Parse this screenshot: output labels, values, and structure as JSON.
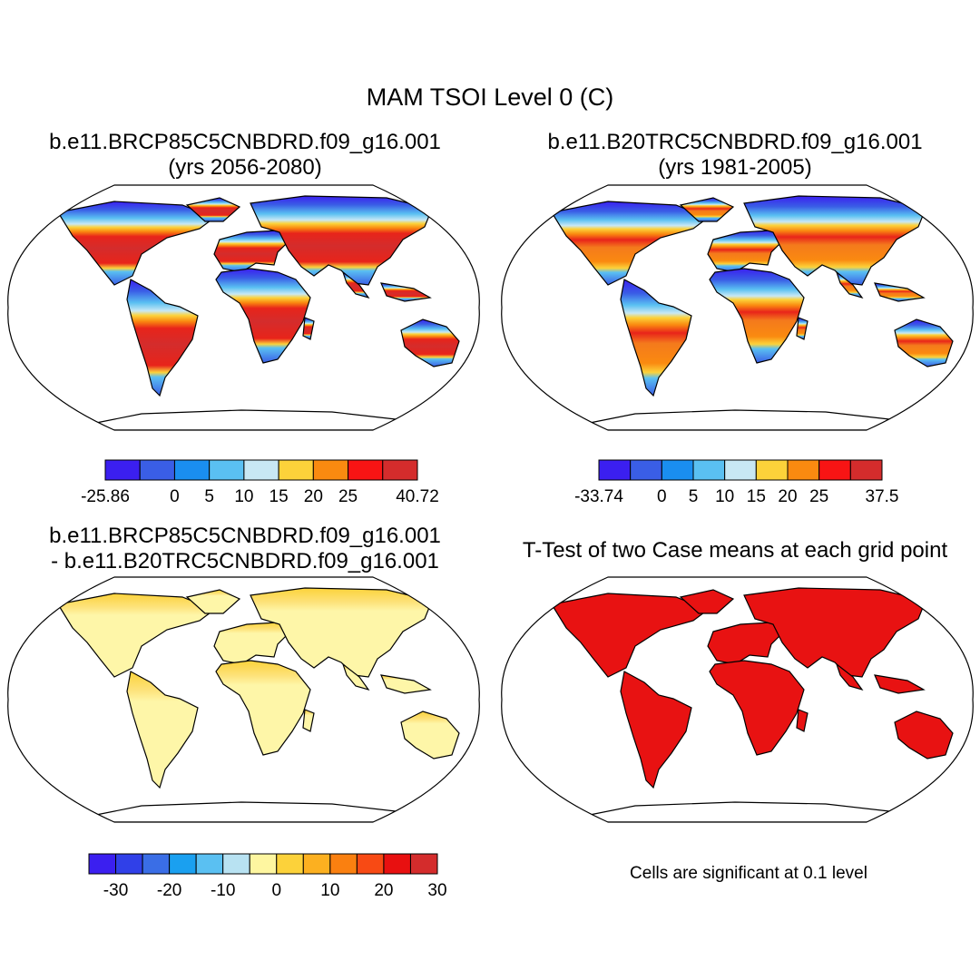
{
  "figure": {
    "main_title": "MAM TSOI Level 0 (C)",
    "panels": [
      {
        "id": "tl",
        "title_lines": [
          "b.e11.BRCP85C5CNBDRD.f09_g16.001",
          "(yrs 2056-2080)"
        ],
        "colorbar": {
          "colors": [
            "#3b1ff0",
            "#3a5ee6",
            "#1a8ef0",
            "#5ac0f2",
            "#c8e8f4",
            "#fcd23a",
            "#fa8a10",
            "#f81414",
            "#d42c2c"
          ],
          "tick_labels": [
            "-25.86",
            "0",
            "5",
            "10",
            "15",
            "20",
            "25",
            "40.72"
          ]
        }
      },
      {
        "id": "tr",
        "title_lines": [
          "b.e11.B20TRC5CNBDRD.f09_g16.001",
          "(yrs 1981-2005)"
        ],
        "colorbar": {
          "colors": [
            "#3b1ff0",
            "#3a5ee6",
            "#1a8ef0",
            "#5ac0f2",
            "#c8e8f4",
            "#fcd23a",
            "#fa8a10",
            "#f81414",
            "#d42c2c"
          ],
          "tick_labels": [
            "-33.74",
            "0",
            "5",
            "10",
            "15",
            "20",
            "25",
            "37.5"
          ]
        }
      },
      {
        "id": "bl",
        "title_lines": [
          "b.e11.BRCP85C5CNBDRD.f09_g16.001",
          "- b.e11.B20TRC5CNBDRD.f09_g16.001"
        ],
        "colorbar": {
          "colors": [
            "#3b1ff0",
            "#3040e8",
            "#3a6ee6",
            "#1aa0f0",
            "#5ac0f2",
            "#b8e2f2",
            "#fef6a0",
            "#fcd23a",
            "#fcb020",
            "#fa8010",
            "#f84a14",
            "#e81010",
            "#d42c2c"
          ],
          "tick_labels": [
            "-30",
            "-20",
            "-10",
            "0",
            "10",
            "20",
            "30"
          ]
        }
      },
      {
        "id": "br",
        "title_lines": [
          "T-Test of two Case means at each grid point"
        ],
        "note": "Cells are significant at 0.1 level"
      }
    ],
    "map_fill_colors": {
      "tl_land_warm": "#d42c2c",
      "tr_land_warm": "#f47a1c",
      "bl_land": "#fef6a8",
      "br_land": "#e81212",
      "cold_high_latitude": "#3a6ee6",
      "ocean": "#ffffff",
      "coastline": "#000000"
    },
    "icons": [
      "robinson-projection-world-map"
    ]
  }
}
